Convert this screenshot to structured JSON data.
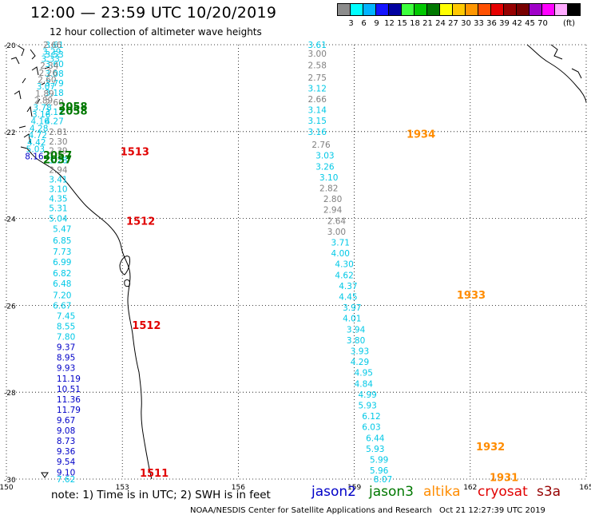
{
  "header": {
    "title": "12:00 — 23:59 UTC 10/20/2019",
    "subtitle": "12 hour collection of altimeter wave heights"
  },
  "legend": {
    "colors": [
      "#8c8c8c",
      "#00ffff",
      "#00b4ff",
      "#1414ff",
      "#0000a0",
      "#3cff3c",
      "#00c800",
      "#007800",
      "#ffff00",
      "#ffc800",
      "#ff9600",
      "#ff5000",
      "#e60000",
      "#960000",
      "#780000",
      "#a000c8",
      "#ff00ff",
      "#ffaaff",
      "#000000"
    ],
    "labels": [
      "3",
      "6",
      "9",
      "12",
      "15",
      "18",
      "21",
      "24",
      "27",
      "30",
      "33",
      "36",
      "39",
      "42",
      "45",
      "70",
      "(ft)"
    ]
  },
  "map": {
    "lon_ticks": [
      "150",
      "153",
      "156",
      "159",
      "162",
      "165"
    ],
    "lat_ticks": [
      "-20",
      "-22",
      "-24",
      "-26",
      "-28",
      "-30"
    ],
    "lon_range": [
      150,
      165
    ],
    "lat_range": [
      -30,
      -20
    ],
    "colors": {
      "gray": "#808080",
      "cyan": "#00c8e6",
      "blue": "#0000c8",
      "green": "#007800",
      "red": "#e10000",
      "orange": "#ff8c00",
      "grid": "#000000",
      "coast": "#000000"
    },
    "tracks": [
      {
        "points": [
          {
            "lon": 157.8,
            "lat": -20.0,
            "v": "3.61",
            "c": "cyan"
          },
          {
            "lon": 157.8,
            "lat": -20.2,
            "v": "3.00",
            "c": "gray"
          },
          {
            "lon": 157.8,
            "lat": -20.47,
            "v": "2.58",
            "c": "gray"
          },
          {
            "lon": 157.8,
            "lat": -20.75,
            "v": "2.75",
            "c": "gray"
          },
          {
            "lon": 157.8,
            "lat": -21.0,
            "v": "3.12",
            "c": "cyan"
          },
          {
            "lon": 157.8,
            "lat": -21.25,
            "v": "2.66",
            "c": "gray"
          },
          {
            "lon": 157.8,
            "lat": -21.5,
            "v": "3.14",
            "c": "cyan"
          },
          {
            "lon": 157.8,
            "lat": -21.75,
            "v": "3.15",
            "c": "cyan"
          },
          {
            "lon": 157.8,
            "lat": -22.0,
            "v": "3.16",
            "c": "cyan"
          },
          {
            "lon": 157.9,
            "lat": -22.3,
            "v": "2.76",
            "c": "gray"
          },
          {
            "lon": 158.0,
            "lat": -22.55,
            "v": "3.03",
            "c": "cyan"
          },
          {
            "lon": 158.0,
            "lat": -22.8,
            "v": "3.26",
            "c": "cyan"
          },
          {
            "lon": 158.1,
            "lat": -23.05,
            "v": "3.10",
            "c": "cyan"
          },
          {
            "lon": 158.1,
            "lat": -23.3,
            "v": "2.82",
            "c": "gray"
          },
          {
            "lon": 158.2,
            "lat": -23.55,
            "v": "2.80",
            "c": "gray"
          },
          {
            "lon": 158.2,
            "lat": -23.8,
            "v": "2.94",
            "c": "gray"
          },
          {
            "lon": 158.3,
            "lat": -24.05,
            "v": "2.64",
            "c": "gray"
          },
          {
            "lon": 158.3,
            "lat": -24.3,
            "v": "3.00",
            "c": "gray"
          },
          {
            "lon": 158.4,
            "lat": -24.55,
            "v": "3.71",
            "c": "cyan"
          },
          {
            "lon": 158.4,
            "lat": -24.8,
            "v": "4.00",
            "c": "cyan"
          },
          {
            "lon": 158.5,
            "lat": -25.05,
            "v": "4.30",
            "c": "cyan"
          },
          {
            "lon": 158.5,
            "lat": -25.3,
            "v": "4.62",
            "c": "cyan"
          },
          {
            "lon": 158.6,
            "lat": -25.55,
            "v": "4.37",
            "c": "cyan"
          },
          {
            "lon": 158.6,
            "lat": -25.8,
            "v": "4.45",
            "c": "cyan"
          },
          {
            "lon": 158.7,
            "lat": -26.05,
            "v": "3.97",
            "c": "cyan"
          },
          {
            "lon": 158.7,
            "lat": -26.3,
            "v": "4.01",
            "c": "cyan"
          },
          {
            "lon": 158.8,
            "lat": -26.55,
            "v": "3.94",
            "c": "cyan"
          },
          {
            "lon": 158.8,
            "lat": -26.8,
            "v": "3.80",
            "c": "cyan"
          },
          {
            "lon": 158.9,
            "lat": -27.05,
            "v": "3.93",
            "c": "cyan"
          },
          {
            "lon": 158.9,
            "lat": -27.3,
            "v": "4.29",
            "c": "cyan"
          },
          {
            "lon": 159.0,
            "lat": -27.55,
            "v": "4.95",
            "c": "cyan"
          },
          {
            "lon": 159.0,
            "lat": -27.8,
            "v": "4.84",
            "c": "cyan"
          },
          {
            "lon": 159.1,
            "lat": -28.05,
            "v": "4.99",
            "c": "cyan"
          },
          {
            "lon": 159.1,
            "lat": -28.3,
            "v": "5.93",
            "c": "cyan"
          },
          {
            "lon": 159.2,
            "lat": -28.55,
            "v": "6.12",
            "c": "cyan"
          },
          {
            "lon": 159.2,
            "lat": -28.8,
            "v": "6.03",
            "c": "cyan"
          },
          {
            "lon": 159.3,
            "lat": -29.05,
            "v": "6.44",
            "c": "cyan"
          },
          {
            "lon": 159.3,
            "lat": -29.3,
            "v": "5.93",
            "c": "cyan"
          },
          {
            "lon": 159.4,
            "lat": -29.55,
            "v": "5.99",
            "c": "cyan"
          },
          {
            "lon": 159.4,
            "lat": -29.8,
            "v": "5.96",
            "c": "cyan"
          },
          {
            "lon": 159.5,
            "lat": -30.0,
            "v": "8.07",
            "c": "cyan"
          }
        ],
        "times": [
          {
            "lon": 160.35,
            "lat": -22.05,
            "t": "1934",
            "c": "orange"
          },
          {
            "lon": 161.65,
            "lat": -25.75,
            "t": "1933",
            "c": "orange"
          },
          {
            "lon": 162.15,
            "lat": -29.25,
            "t": "1932",
            "c": "orange"
          },
          {
            "lon": 162.5,
            "lat": -29.95,
            "t": "1931",
            "c": "orange"
          }
        ]
      },
      {
        "points": [
          {
            "lon": 151.0,
            "lat": -20.0,
            "v": "3.61",
            "c": "cyan"
          },
          {
            "lon": 151.0,
            "lat": -20.22,
            "v": "3.53",
            "c": "cyan"
          },
          {
            "lon": 151.0,
            "lat": -20.44,
            "v": "3.60",
            "c": "cyan"
          },
          {
            "lon": 151.0,
            "lat": -20.66,
            "v": "3.08",
            "c": "cyan"
          },
          {
            "lon": 151.0,
            "lat": -20.88,
            "v": "3.79",
            "c": "cyan"
          },
          {
            "lon": 151.0,
            "lat": -21.1,
            "v": "3.18",
            "c": "cyan"
          },
          {
            "lon": 151.0,
            "lat": -21.32,
            "v": "2.60",
            "c": "gray"
          },
          {
            "lon": 151.0,
            "lat": -21.54,
            "v": "3.11",
            "c": "cyan"
          },
          {
            "lon": 151.0,
            "lat": -21.76,
            "v": "4.27",
            "c": "cyan"
          },
          {
            "lon": 151.1,
            "lat": -22.0,
            "v": "2.81",
            "c": "gray"
          },
          {
            "lon": 151.1,
            "lat": -22.22,
            "v": "2.30",
            "c": "gray"
          },
          {
            "lon": 151.1,
            "lat": -22.44,
            "v": "2.39",
            "c": "gray"
          },
          {
            "lon": 151.1,
            "lat": -22.66,
            "v": "3.28",
            "c": "cyan"
          },
          {
            "lon": 151.1,
            "lat": -22.88,
            "v": "2.94",
            "c": "gray"
          },
          {
            "lon": 151.1,
            "lat": -23.1,
            "v": "3.41",
            "c": "cyan"
          },
          {
            "lon": 151.1,
            "lat": -23.32,
            "v": "3.10",
            "c": "cyan"
          },
          {
            "lon": 151.1,
            "lat": -23.54,
            "v": "4.35",
            "c": "cyan"
          },
          {
            "lon": 151.1,
            "lat": -23.76,
            "v": "5.31",
            "c": "cyan"
          },
          {
            "lon": 151.1,
            "lat": -24.0,
            "v": "5.04",
            "c": "cyan"
          },
          {
            "lon": 151.2,
            "lat": -24.24,
            "v": "5.47",
            "c": "cyan"
          },
          {
            "lon": 151.2,
            "lat": -24.5,
            "v": "6.85",
            "c": "cyan"
          },
          {
            "lon": 151.2,
            "lat": -24.76,
            "v": "7.73",
            "c": "cyan"
          },
          {
            "lon": 151.2,
            "lat": -25.0,
            "v": "6.99",
            "c": "cyan"
          },
          {
            "lon": 151.2,
            "lat": -25.26,
            "v": "6.82",
            "c": "cyan"
          },
          {
            "lon": 151.2,
            "lat": -25.5,
            "v": "6.48",
            "c": "cyan"
          },
          {
            "lon": 151.2,
            "lat": -25.76,
            "v": "7.20",
            "c": "cyan"
          },
          {
            "lon": 151.2,
            "lat": -26.0,
            "v": "6.67",
            "c": "cyan"
          },
          {
            "lon": 151.3,
            "lat": -26.24,
            "v": "7.45",
            "c": "cyan"
          },
          {
            "lon": 151.3,
            "lat": -26.48,
            "v": "8.55",
            "c": "cyan"
          },
          {
            "lon": 151.3,
            "lat": -26.72,
            "v": "7.80",
            "c": "cyan"
          },
          {
            "lon": 151.3,
            "lat": -26.96,
            "v": "9.37",
            "c": "blue"
          },
          {
            "lon": 151.3,
            "lat": -27.2,
            "v": "8.95",
            "c": "blue"
          },
          {
            "lon": 151.3,
            "lat": -27.44,
            "v": "9.93",
            "c": "blue"
          },
          {
            "lon": 151.3,
            "lat": -27.68,
            "v": "11.19",
            "c": "blue"
          },
          {
            "lon": 151.3,
            "lat": -27.92,
            "v": "10.51",
            "c": "blue"
          },
          {
            "lon": 151.3,
            "lat": -28.16,
            "v": "11.36",
            "c": "blue"
          },
          {
            "lon": 151.3,
            "lat": -28.4,
            "v": "11.79",
            "c": "blue"
          },
          {
            "lon": 151.3,
            "lat": -28.64,
            "v": "9.67",
            "c": "blue"
          },
          {
            "lon": 151.3,
            "lat": -28.88,
            "v": "9.08",
            "c": "blue"
          },
          {
            "lon": 151.3,
            "lat": -29.12,
            "v": "8.73",
            "c": "blue"
          },
          {
            "lon": 151.3,
            "lat": -29.36,
            "v": "9.36",
            "c": "blue"
          },
          {
            "lon": 151.3,
            "lat": -29.6,
            "v": "9.54",
            "c": "blue"
          },
          {
            "lon": 151.3,
            "lat": -29.84,
            "v": "9.10",
            "c": "blue"
          },
          {
            "lon": 151.3,
            "lat": -30.0,
            "v": "7.62",
            "c": "cyan"
          }
        ],
        "times": [
          {
            "lon": 152.95,
            "lat": -22.45,
            "t": "1513",
            "c": "red"
          },
          {
            "lon": 153.1,
            "lat": -24.05,
            "t": "1512",
            "c": "red"
          },
          {
            "lon": 153.25,
            "lat": -26.45,
            "t": "1512",
            "c": "red"
          },
          {
            "lon": 153.45,
            "lat": -29.85,
            "t": "1511",
            "c": "red"
          }
        ]
      },
      {
        "points": [
          {
            "lon": 150.95,
            "lat": -20.0,
            "v": "2.66",
            "c": "gray"
          },
          {
            "lon": 150.93,
            "lat": -20.16,
            "v": "3.29",
            "c": "cyan"
          },
          {
            "lon": 150.9,
            "lat": -20.32,
            "v": "3.33",
            "c": "cyan"
          },
          {
            "lon": 150.87,
            "lat": -20.48,
            "v": "2.34",
            "c": "gray"
          },
          {
            "lon": 150.84,
            "lat": -20.64,
            "v": "2.26",
            "c": "gray"
          },
          {
            "lon": 150.81,
            "lat": -20.8,
            "v": "2.60",
            "c": "gray"
          },
          {
            "lon": 150.78,
            "lat": -20.96,
            "v": "3.07",
            "c": "cyan"
          },
          {
            "lon": 150.75,
            "lat": -21.12,
            "v": "1.89",
            "c": "gray"
          },
          {
            "lon": 150.72,
            "lat": -21.28,
            "v": "2.89",
            "c": "gray"
          },
          {
            "lon": 150.69,
            "lat": -21.44,
            "v": "3.78",
            "c": "cyan"
          },
          {
            "lon": 150.66,
            "lat": -21.6,
            "v": "3.16",
            "c": "cyan"
          },
          {
            "lon": 150.63,
            "lat": -21.76,
            "v": "4.16",
            "c": "cyan"
          },
          {
            "lon": 150.6,
            "lat": -21.92,
            "v": "4.28",
            "c": "cyan"
          },
          {
            "lon": 150.57,
            "lat": -22.08,
            "v": "4.72",
            "c": "cyan"
          },
          {
            "lon": 150.54,
            "lat": -22.24,
            "v": "4.42",
            "c": "cyan"
          },
          {
            "lon": 150.51,
            "lat": -22.4,
            "v": "5.03",
            "c": "cyan"
          },
          {
            "lon": 150.48,
            "lat": -22.56,
            "v": "8.16",
            "c": "blue"
          }
        ],
        "times": [
          {
            "lon": 151.35,
            "lat": -21.42,
            "t": "2058",
            "c": "green"
          },
          {
            "lon": 151.35,
            "lat": -21.52,
            "t": "2058",
            "c": "green"
          },
          {
            "lon": 150.95,
            "lat": -22.54,
            "t": "2057",
            "c": "green"
          },
          {
            "lon": 150.95,
            "lat": -22.64,
            "t": "2057",
            "c": "green"
          }
        ]
      }
    ]
  },
  "footer": {
    "note": "note: 1) Time is in UTC; 2) SWH is in feet",
    "satellites": [
      {
        "name": "jason2",
        "color": "#0000c8"
      },
      {
        "name": "jason3",
        "color": "#007800"
      },
      {
        "name": "altika",
        "color": "#ff8c00"
      },
      {
        "name": "cryosat",
        "color": "#e10000"
      },
      {
        "name": "s3a",
        "color": "#960000"
      }
    ],
    "credit": "NOAA/NESDIS Center for Satellite Applications and Research",
    "timestamp": "Oct 21 12:27:39 UTC 2019"
  }
}
